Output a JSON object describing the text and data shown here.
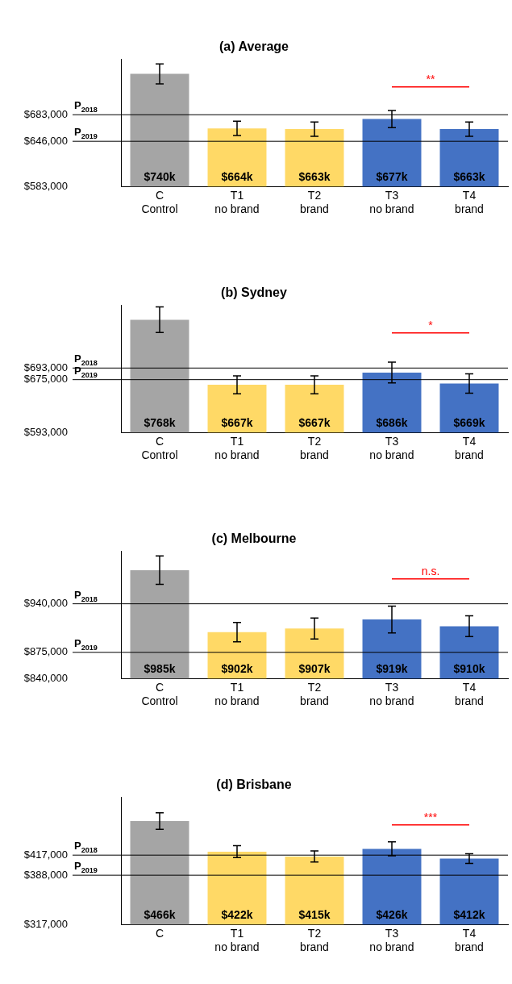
{
  "chart_data": [
    {
      "type": "bar",
      "title": "(a) Average",
      "categories": [
        "C\nControl",
        "T1\nno brand",
        "T2\nbrand",
        "T3\nno brand",
        "T4\nbrand"
      ],
      "values": [
        740000,
        664000,
        663000,
        677000,
        663000
      ],
      "colors": [
        "#a5a5a5",
        "#ffd966",
        "#ffd966",
        "#4472c4",
        "#4472c4"
      ],
      "errors": [
        14000,
        10000,
        10000,
        12000,
        10000
      ],
      "value_labels": [
        "$740k",
        "$664k",
        "$663k",
        "$677k",
        "$663k"
      ],
      "ylim": [
        583000,
        760000
      ],
      "yticks": [
        {
          "value": 583000,
          "label": "$583,000"
        },
        {
          "value": 646000,
          "label": "$646,000"
        },
        {
          "value": 683000,
          "label": "$683,000"
        }
      ],
      "ref_lines": [
        {
          "axis": "y",
          "value": 683000,
          "label": "P$_{2018}$",
          "color": "#000000"
        },
        {
          "axis": "y",
          "value": 646000,
          "label": "P$_{2019}$",
          "color": "#000000"
        }
      ],
      "annotations": [
        "**"
      ],
      "grid": false,
      "legend": false
    },
    {
      "type": "bar",
      "title": "(b) Sydney",
      "categories": [
        "C\nControl",
        "T1\nno brand",
        "T2\nbrand",
        "T3\nno brand",
        "T4\nbrand"
      ],
      "values": [
        768000,
        667000,
        667000,
        686000,
        669000
      ],
      "colors": [
        "#a5a5a5",
        "#ffd966",
        "#ffd966",
        "#4472c4",
        "#4472c4"
      ],
      "errors": [
        20000,
        14000,
        14000,
        16000,
        15000
      ],
      "value_labels": [
        "$768k",
        "$667k",
        "$667k",
        "$686k",
        "$669k"
      ],
      "ylim": [
        593000,
        790000
      ],
      "yticks": [
        {
          "value": 593000,
          "label": "$593,000"
        },
        {
          "value": 675000,
          "label": "$675,000"
        },
        {
          "value": 693000,
          "label": "$693,000"
        }
      ],
      "ref_lines": [
        {
          "axis": "y",
          "value": 693000,
          "label": "P$_{2018}$",
          "color": "#000000"
        },
        {
          "axis": "y",
          "value": 675000,
          "label": "P$_{2019}$",
          "color": "#000000"
        }
      ],
      "annotations": [
        "*"
      ],
      "grid": false,
      "legend": false
    },
    {
      "type": "bar",
      "title": "(c) Melbourne",
      "categories": [
        "C\nControl",
        "T1\nno brand",
        "T2\nbrand",
        "T3\nno brand",
        "T4\nbrand"
      ],
      "values": [
        985000,
        902000,
        907000,
        919000,
        910000
      ],
      "colors": [
        "#a5a5a5",
        "#ffd966",
        "#ffd966",
        "#4472c4",
        "#4472c4"
      ],
      "errors": [
        19000,
        13000,
        14000,
        18000,
        14000
      ],
      "value_labels": [
        "$985k",
        "$902k",
        "$907k",
        "$919k",
        "$910k"
      ],
      "ylim": [
        840000,
        1010000
      ],
      "yticks": [
        {
          "value": 840000,
          "label": "$840,000"
        },
        {
          "value": 875000,
          "label": "$875,000"
        },
        {
          "value": 940000,
          "label": "$940,000"
        }
      ],
      "ref_lines": [
        {
          "axis": "y",
          "value": 940000,
          "label": "P$_{2018}$",
          "color": "#000000"
        },
        {
          "axis": "y",
          "value": 875000,
          "label": "P$_{2019}$",
          "color": "#000000"
        }
      ],
      "annotations": [
        "n.s."
      ],
      "grid": false,
      "legend": false
    },
    {
      "type": "bar",
      "title": "(d) Brisbane",
      "categories": [
        "C",
        "T1\nno brand",
        "T2\nbrand",
        "T3\nno brand",
        "T4\nbrand"
      ],
      "values": [
        466000,
        422000,
        415000,
        426000,
        412000
      ],
      "colors": [
        "#a5a5a5",
        "#ffd966",
        "#ffd966",
        "#4472c4",
        "#4472c4"
      ],
      "errors": [
        12000,
        8500,
        8000,
        10000,
        7000
      ],
      "value_labels": [
        "$466k",
        "$422k",
        "$415k",
        "$426k",
        "$412k"
      ],
      "ylim": [
        317000,
        500000
      ],
      "yticks": [
        {
          "value": 317000,
          "label": "$317,000"
        },
        {
          "value": 388000,
          "label": "$388,000"
        },
        {
          "value": 417000,
          "label": "$417,000"
        }
      ],
      "ref_lines": [
        {
          "axis": "y",
          "value": 417000,
          "label": "P$_{2018}$",
          "color": "#000000"
        },
        {
          "axis": "y",
          "value": 388000,
          "label": "P$_{2019}$",
          "color": "#000000"
        }
      ],
      "annotations": [
        "***"
      ],
      "grid": false,
      "legend": false
    }
  ]
}
